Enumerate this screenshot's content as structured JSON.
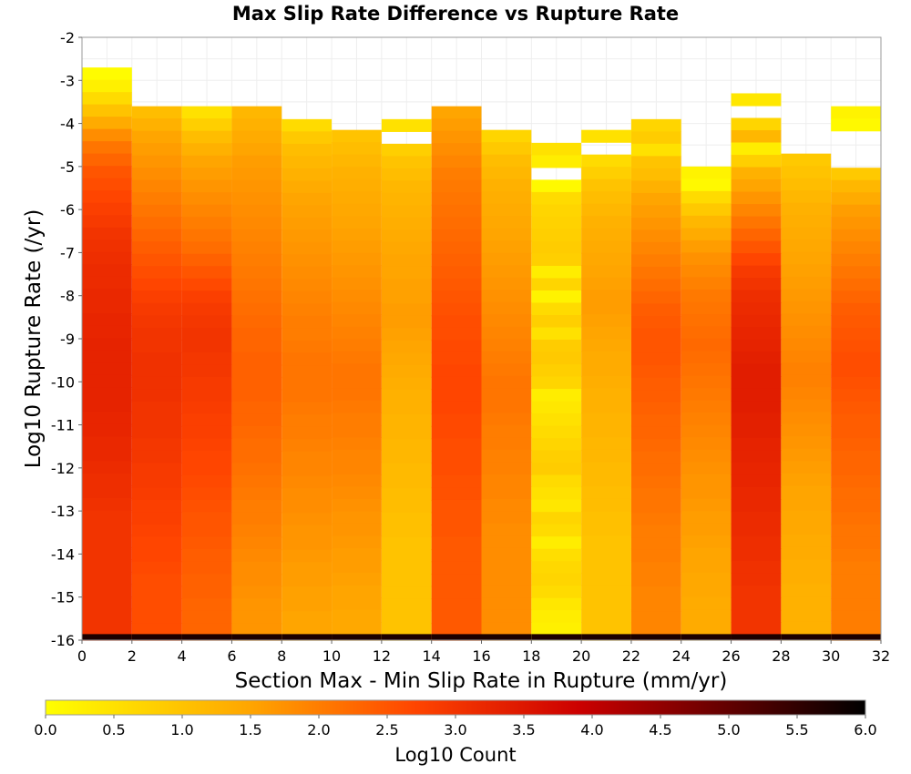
{
  "chart_data": {
    "type": "heatmap",
    "title": "Max Slip Rate Difference vs Rupture Rate",
    "xlabel": "Section Max - Min Slip Rate in Rupture (mm/yr)",
    "ylabel": "Log10 Rupture Rate (/yr)",
    "xlim": [
      0,
      32
    ],
    "ylim": [
      -16,
      -2
    ],
    "x_ticks": [
      "0",
      "2",
      "4",
      "6",
      "8",
      "10",
      "12",
      "14",
      "16",
      "18",
      "20",
      "22",
      "24",
      "26",
      "28",
      "30",
      "32"
    ],
    "y_ticks": [
      "-2",
      "-3",
      "-4",
      "-5",
      "-6",
      "-7",
      "-8",
      "-9",
      "-10",
      "-11",
      "-12",
      "-13",
      "-14",
      "-15",
      "-16"
    ],
    "x_bin_width": 2,
    "y_bin_height": 0.2857,
    "colorbar": {
      "label": "Log10 Count",
      "range": [
        0,
        6
      ],
      "ticks": [
        "0.0",
        "0.5",
        "1.0",
        "1.5",
        "2.0",
        "2.5",
        "3.0",
        "3.5",
        "4.0",
        "4.5",
        "5.0",
        "5.5",
        "6.0"
      ],
      "colors": [
        "#ffff00",
        "#ffa500",
        "#ff4500",
        "#cc0000",
        "#000000"
      ]
    },
    "columns": [
      {
        "x_start": 0,
        "x_end": 2,
        "y_top": -2.7,
        "rows": [
          0.05,
          0.25,
          0.6,
          1.0,
          1.4,
          1.8,
          2.1,
          2.3,
          2.5,
          2.6,
          2.7,
          2.8,
          2.9,
          3.0,
          3.05,
          3.1,
          3.15,
          3.15,
          3.2,
          3.2,
          3.25,
          3.25,
          3.3,
          3.3,
          3.3,
          3.3,
          3.3,
          3.3,
          3.25,
          3.25,
          3.2,
          3.2,
          3.15,
          3.1,
          3.1,
          3.05,
          3.0,
          3.0,
          3.0,
          3.0,
          3.0,
          3.0,
          3.0,
          3.0,
          3.0,
          3.0,
          3.0,
          3.0
        ]
      },
      {
        "x_start": 2,
        "x_end": 4,
        "y_top": -3.6,
        "rows": [
          1.1,
          1.3,
          1.5,
          1.6,
          1.7,
          1.8,
          1.9,
          2.0,
          2.1,
          2.2,
          2.3,
          2.4,
          2.5,
          2.6,
          2.7,
          2.8,
          2.9,
          2.95,
          3.0,
          3.0,
          3.05,
          3.05,
          3.05,
          3.05,
          3.0,
          3.0,
          3.0,
          2.95,
          2.95,
          2.9,
          2.9,
          2.85,
          2.8,
          2.8,
          2.75,
          2.7,
          2.7,
          2.65,
          2.6,
          2.6,
          2.6,
          2.6,
          2.6,
          2.6,
          2.6,
          2.6
        ]
      },
      {
        "x_start": 4,
        "x_end": 6,
        "y_top": -3.6,
        "rows": [
          0.5,
          0.8,
          1.1,
          1.3,
          1.5,
          1.6,
          1.7,
          1.8,
          1.9,
          2.0,
          2.1,
          2.2,
          2.35,
          2.5,
          2.65,
          2.8,
          2.9,
          2.95,
          3.0,
          3.0,
          2.95,
          2.95,
          2.9,
          2.9,
          2.85,
          2.8,
          2.8,
          2.75,
          2.7,
          2.7,
          2.65,
          2.6,
          2.55,
          2.5,
          2.5,
          2.45,
          2.4,
          2.4,
          2.35,
          2.35,
          2.3,
          2.3,
          2.3,
          2.3,
          2.3
        ]
      },
      {
        "x_start": 6,
        "x_end": 8,
        "y_top": -3.6,
        "rows": [
          1.2,
          1.3,
          1.4,
          1.5,
          1.6,
          1.65,
          1.7,
          1.75,
          1.8,
          1.85,
          1.9,
          1.95,
          2.0,
          2.05,
          2.1,
          2.15,
          2.2,
          2.25,
          2.3,
          2.3,
          2.35,
          2.35,
          2.35,
          2.35,
          2.3,
          2.3,
          2.25,
          2.2,
          2.2,
          2.15,
          2.1,
          2.05,
          2.0,
          2.0,
          1.95,
          1.9,
          1.85,
          1.8,
          1.8,
          1.75,
          1.7,
          1.7,
          1.7,
          1.7,
          1.7,
          1.7
        ]
      },
      {
        "x_start": 8,
        "x_end": 10,
        "y_top": -3.9,
        "rows": [
          0.6,
          0.9,
          1.1,
          1.2,
          1.3,
          1.4,
          1.5,
          1.55,
          1.6,
          1.65,
          1.7,
          1.75,
          1.8,
          1.85,
          1.9,
          1.95,
          2.0,
          2.0,
          2.05,
          2.1,
          2.1,
          2.1,
          2.1,
          2.05,
          2.0,
          2.0,
          1.95,
          1.9,
          1.9,
          1.85,
          1.8,
          1.8,
          1.75,
          1.7,
          1.7,
          1.65,
          1.6,
          1.6,
          1.55,
          1.55,
          1.5,
          1.5,
          1.5,
          1.5
        ]
      },
      {
        "x_start": 10,
        "x_end": 12,
        "y_top": -4.15,
        "rows": [
          1.0,
          1.1,
          1.2,
          1.3,
          1.35,
          1.4,
          1.45,
          1.5,
          1.55,
          1.6,
          1.65,
          1.7,
          1.75,
          1.8,
          1.85,
          1.9,
          1.95,
          2.0,
          2.05,
          2.1,
          2.1,
          2.1,
          2.05,
          2.0,
          2.0,
          1.95,
          1.9,
          1.9,
          1.85,
          1.8,
          1.75,
          1.7,
          1.7,
          1.65,
          1.6,
          1.6,
          1.55,
          1.5,
          1.5,
          1.45,
          1.45,
          1.45,
          1.45
        ]
      },
      {
        "x_start": 12,
        "x_end": 14,
        "y_top": -3.9,
        "rows": [
          0.5,
          -1,
          0.8,
          1.0,
          1.1,
          1.2,
          1.25,
          1.3,
          1.35,
          1.4,
          1.45,
          1.5,
          1.5,
          1.55,
          1.55,
          1.6,
          1.6,
          1.55,
          1.5,
          1.45,
          1.4,
          1.35,
          1.3,
          1.3,
          1.25,
          1.25,
          1.2,
          1.2,
          1.15,
          1.15,
          1.1,
          1.1,
          1.05,
          1.05,
          1.0,
          1.0,
          1.0,
          1.0,
          1.0,
          1.0,
          1.0,
          1.0,
          1.0,
          1.0
        ]
      },
      {
        "x_start": 14,
        "x_end": 16,
        "y_top": -3.6,
        "rows": [
          1.5,
          1.6,
          1.7,
          1.8,
          1.9,
          2.0,
          2.05,
          2.1,
          2.15,
          2.2,
          2.25,
          2.3,
          2.35,
          2.4,
          2.45,
          2.5,
          2.55,
          2.6,
          2.6,
          2.65,
          2.65,
          2.7,
          2.7,
          2.7,
          2.7,
          2.65,
          2.65,
          2.6,
          2.6,
          2.6,
          2.55,
          2.55,
          2.5,
          2.5,
          2.5,
          2.45,
          2.45,
          2.45,
          2.45,
          2.45,
          2.45,
          2.45,
          2.45,
          2.45,
          2.45,
          2.45
        ]
      },
      {
        "x_start": 16,
        "x_end": 18,
        "y_top": -4.15,
        "rows": [
          0.7,
          0.9,
          1.1,
          1.2,
          1.3,
          1.35,
          1.4,
          1.45,
          1.5,
          1.55,
          1.6,
          1.65,
          1.7,
          1.75,
          1.8,
          1.85,
          1.9,
          1.95,
          2.0,
          2.05,
          2.1,
          2.1,
          2.1,
          2.05,
          2.0,
          2.0,
          1.95,
          1.95,
          1.9,
          1.9,
          1.85,
          1.85,
          1.8,
          1.8,
          1.8,
          1.8,
          1.8,
          1.8,
          1.8,
          1.8,
          1.8,
          1.8,
          1.8
        ]
      },
      {
        "x_start": 18,
        "x_end": 20,
        "y_top": -4.45,
        "rows": [
          0.5,
          0.3,
          -1,
          0.1,
          0.6,
          0.7,
          0.75,
          0.8,
          0.85,
          0.8,
          0.3,
          0.7,
          0.2,
          0.6,
          0.8,
          0.5,
          0.85,
          0.9,
          0.8,
          0.7,
          0.3,
          0.4,
          0.5,
          0.6,
          0.7,
          0.8,
          0.85,
          0.6,
          0.5,
          0.4,
          0.7,
          0.6,
          0.3,
          0.55,
          0.65,
          0.7,
          0.6,
          0.4,
          0.3,
          0.25,
          0.2
        ]
      },
      {
        "x_start": 20,
        "x_end": 22,
        "y_top": -4.15,
        "rows": [
          0.5,
          -1,
          0.6,
          0.8,
          1.0,
          1.1,
          1.2,
          1.3,
          1.35,
          1.4,
          1.45,
          1.5,
          1.55,
          1.6,
          1.6,
          1.55,
          1.5,
          1.45,
          1.4,
          1.4,
          1.35,
          1.3,
          1.3,
          1.25,
          1.25,
          1.2,
          1.2,
          1.15,
          1.15,
          1.1,
          1.1,
          1.05,
          1.05,
          1.0,
          1.0,
          1.0,
          1.0,
          1.0,
          1.0,
          1.0,
          1.0,
          1.0,
          1.0
        ]
      },
      {
        "x_start": 22,
        "x_end": 24,
        "y_top": -3.9,
        "rows": [
          0.7,
          0.85,
          0.5,
          1.0,
          1.1,
          1.3,
          1.5,
          1.6,
          1.7,
          1.8,
          1.9,
          2.0,
          2.1,
          2.2,
          2.3,
          2.4,
          2.45,
          2.5,
          2.5,
          2.5,
          2.45,
          2.4,
          2.4,
          2.35,
          2.3,
          2.3,
          2.25,
          2.2,
          2.2,
          2.15,
          2.1,
          2.1,
          2.05,
          2.0,
          2.0,
          2.0,
          1.95,
          1.95,
          1.9,
          1.9,
          1.9,
          1.9,
          1.9,
          1.9
        ]
      },
      {
        "x_start": 24,
        "x_end": 26,
        "y_top": -5.0,
        "rows": [
          0.2,
          0.1,
          0.6,
          0.9,
          1.2,
          1.4,
          1.6,
          1.75,
          1.85,
          1.95,
          2.05,
          2.1,
          2.15,
          2.2,
          2.25,
          2.2,
          2.15,
          2.1,
          2.05,
          2.0,
          1.95,
          1.9,
          1.85,
          1.8,
          1.75,
          1.7,
          1.7,
          1.65,
          1.6,
          1.6,
          1.55,
          1.5,
          1.5,
          1.45,
          1.45,
          1.4,
          1.4,
          1.4,
          1.4
        ]
      },
      {
        "x_start": 26,
        "x_end": 28,
        "y_top": -3.3,
        "rows": [
          0.4,
          -1,
          0.7,
          1.2,
          0.3,
          0.8,
          1.3,
          1.5,
          1.7,
          1.9,
          2.1,
          2.3,
          2.5,
          2.7,
          2.9,
          3.0,
          3.1,
          3.15,
          3.2,
          3.25,
          3.3,
          3.35,
          3.4,
          3.4,
          3.4,
          3.4,
          3.35,
          3.35,
          3.3,
          3.3,
          3.25,
          3.25,
          3.2,
          3.2,
          3.15,
          3.15,
          3.1,
          3.1,
          3.05,
          3.05,
          3.0,
          3.0,
          3.0,
          3.0,
          3.0
        ]
      },
      {
        "x_start": 28,
        "x_end": 30,
        "y_top": -4.7,
        "rows": [
          0.9,
          1.0,
          1.1,
          1.2,
          1.3,
          1.35,
          1.4,
          1.45,
          1.5,
          1.55,
          1.6,
          1.65,
          1.7,
          1.75,
          1.8,
          1.85,
          1.9,
          1.95,
          1.95,
          1.9,
          1.85,
          1.8,
          1.75,
          1.7,
          1.65,
          1.6,
          1.55,
          1.5,
          1.5,
          1.45,
          1.45,
          1.4,
          1.4,
          1.35,
          1.35,
          1.3,
          1.3,
          1.3,
          1.3,
          1.3
        ]
      },
      {
        "x_start": 30,
        "x_end": 32,
        "y_top": -3.6,
        "rows": [
          0.2,
          0.1,
          -1,
          -1,
          -1,
          0.9,
          1.2,
          1.4,
          1.6,
          1.7,
          1.8,
          1.9,
          2.0,
          2.1,
          2.2,
          2.3,
          2.4,
          2.45,
          2.5,
          2.55,
          2.6,
          2.6,
          2.55,
          2.5,
          2.45,
          2.4,
          2.4,
          2.35,
          2.3,
          2.3,
          2.25,
          2.2,
          2.2,
          2.15,
          2.1,
          2.1,
          2.05,
          2.0,
          2.0,
          2.0,
          2.0,
          2.0,
          2.0,
          2.0,
          2.0,
          2.0
        ]
      }
    ],
    "bottom_row": {
      "y_from": -16.0,
      "y_to": -15.86,
      "value": 5.7
    }
  }
}
